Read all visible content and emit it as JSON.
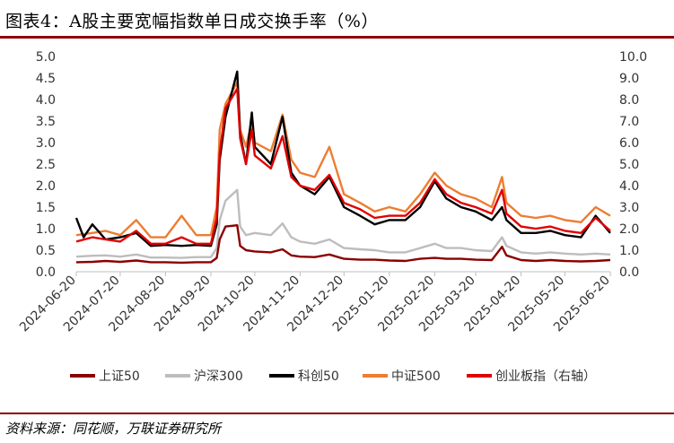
{
  "header": {
    "title": "图表4：A股主要宽幅指数单日成交换手率（%）"
  },
  "footer": {
    "source": "资料来源：同花顺，万联证券研究所"
  },
  "colors": {
    "上证50": "#8b0000",
    "沪深300": "#bdbdbd",
    "科创50": "#000000",
    "中证500": "#ed7d31",
    "创业板指（右轴）": "#e00000",
    "rule": "#8b0000"
  },
  "chart_data": {
    "type": "line",
    "x_ticks": [
      "2024-06-20",
      "2024-07-20",
      "2024-08-20",
      "2024-09-20",
      "2024-10-20",
      "2024-11-20",
      "2024-12-20",
      "2025-01-20",
      "2025-02-20",
      "2025-03-20",
      "2025-04-20",
      "2025-05-20",
      "2025-06-20"
    ],
    "x_range": [
      "2024-06-20",
      "2025-06-20"
    ],
    "y_left": {
      "min": 0,
      "max": 5,
      "ticks": [
        "0.0",
        "0.5",
        "1.0",
        "1.5",
        "2.0",
        "2.5",
        "3.0",
        "3.5",
        "4.0",
        "4.5",
        "5.0"
      ]
    },
    "y_right": {
      "min": 0,
      "max": 10,
      "ticks": [
        "0.0",
        "1.0",
        "2.0",
        "3.0",
        "4.0",
        "5.0",
        "6.0",
        "7.0",
        "8.0",
        "9.0",
        "10.0"
      ]
    },
    "grid": false,
    "legend_position": "bottom",
    "series": [
      {
        "name": "上证50",
        "axis": "left",
        "points": [
          [
            "2024-06-20",
            0.22
          ],
          [
            "2024-07-01",
            0.23
          ],
          [
            "2024-07-10",
            0.25
          ],
          [
            "2024-07-20",
            0.23
          ],
          [
            "2024-07-31",
            0.26
          ],
          [
            "2024-08-10",
            0.22
          ],
          [
            "2024-08-20",
            0.22
          ],
          [
            "2024-08-31",
            0.21
          ],
          [
            "2024-09-10",
            0.22
          ],
          [
            "2024-09-20",
            0.22
          ],
          [
            "2024-09-24",
            0.32
          ],
          [
            "2024-09-26",
            0.75
          ],
          [
            "2024-09-30",
            1.05
          ],
          [
            "2024-10-08",
            1.08
          ],
          [
            "2024-10-10",
            0.6
          ],
          [
            "2024-10-14",
            0.5
          ],
          [
            "2024-10-20",
            0.47
          ],
          [
            "2024-10-31",
            0.45
          ],
          [
            "2024-11-08",
            0.52
          ],
          [
            "2024-11-14",
            0.38
          ],
          [
            "2024-11-20",
            0.35
          ],
          [
            "2024-11-30",
            0.34
          ],
          [
            "2024-12-10",
            0.4
          ],
          [
            "2024-12-20",
            0.3
          ],
          [
            "2024-12-31",
            0.28
          ],
          [
            "2025-01-10",
            0.28
          ],
          [
            "2025-01-20",
            0.26
          ],
          [
            "2025-01-31",
            0.25
          ],
          [
            "2025-02-10",
            0.3
          ],
          [
            "2025-02-20",
            0.32
          ],
          [
            "2025-02-28",
            0.3
          ],
          [
            "2025-03-10",
            0.3
          ],
          [
            "2025-03-20",
            0.28
          ],
          [
            "2025-03-31",
            0.27
          ],
          [
            "2025-04-07",
            0.58
          ],
          [
            "2025-04-10",
            0.38
          ],
          [
            "2025-04-20",
            0.27
          ],
          [
            "2025-04-30",
            0.25
          ],
          [
            "2025-05-10",
            0.27
          ],
          [
            "2025-05-20",
            0.25
          ],
          [
            "2025-05-31",
            0.24
          ],
          [
            "2025-06-10",
            0.25
          ],
          [
            "2025-06-20",
            0.27
          ]
        ]
      },
      {
        "name": "沪深300",
        "axis": "left",
        "points": [
          [
            "2024-06-20",
            0.35
          ],
          [
            "2024-07-01",
            0.37
          ],
          [
            "2024-07-10",
            0.38
          ],
          [
            "2024-07-20",
            0.35
          ],
          [
            "2024-07-31",
            0.4
          ],
          [
            "2024-08-10",
            0.33
          ],
          [
            "2024-08-20",
            0.33
          ],
          [
            "2024-08-31",
            0.32
          ],
          [
            "2024-09-10",
            0.34
          ],
          [
            "2024-09-20",
            0.34
          ],
          [
            "2024-09-24",
            0.55
          ],
          [
            "2024-09-26",
            1.2
          ],
          [
            "2024-09-30",
            1.65
          ],
          [
            "2024-10-08",
            1.9
          ],
          [
            "2024-10-10",
            1.05
          ],
          [
            "2024-10-14",
            0.85
          ],
          [
            "2024-10-20",
            0.9
          ],
          [
            "2024-10-31",
            0.85
          ],
          [
            "2024-11-08",
            1.12
          ],
          [
            "2024-11-14",
            0.8
          ],
          [
            "2024-11-20",
            0.7
          ],
          [
            "2024-11-30",
            0.65
          ],
          [
            "2024-12-10",
            0.75
          ],
          [
            "2024-12-20",
            0.55
          ],
          [
            "2024-12-31",
            0.52
          ],
          [
            "2025-01-10",
            0.5
          ],
          [
            "2025-01-20",
            0.45
          ],
          [
            "2025-01-31",
            0.45
          ],
          [
            "2025-02-10",
            0.55
          ],
          [
            "2025-02-20",
            0.65
          ],
          [
            "2025-02-28",
            0.55
          ],
          [
            "2025-03-10",
            0.55
          ],
          [
            "2025-03-20",
            0.5
          ],
          [
            "2025-03-31",
            0.48
          ],
          [
            "2025-04-07",
            0.8
          ],
          [
            "2025-04-10",
            0.6
          ],
          [
            "2025-04-20",
            0.45
          ],
          [
            "2025-04-30",
            0.42
          ],
          [
            "2025-05-10",
            0.45
          ],
          [
            "2025-05-20",
            0.42
          ],
          [
            "2025-05-31",
            0.4
          ],
          [
            "2025-06-10",
            0.42
          ],
          [
            "2025-06-20",
            0.4
          ]
        ]
      },
      {
        "name": "科创50",
        "axis": "left",
        "points": [
          [
            "2024-06-20",
            1.25
          ],
          [
            "2024-06-25",
            0.8
          ],
          [
            "2024-07-01",
            1.1
          ],
          [
            "2024-07-10",
            0.75
          ],
          [
            "2024-07-20",
            0.8
          ],
          [
            "2024-07-31",
            0.9
          ],
          [
            "2024-08-10",
            0.6
          ],
          [
            "2024-08-20",
            0.62
          ],
          [
            "2024-08-31",
            0.6
          ],
          [
            "2024-09-10",
            0.62
          ],
          [
            "2024-09-20",
            0.6
          ],
          [
            "2024-09-24",
            1.1
          ],
          [
            "2024-09-26",
            2.6
          ],
          [
            "2024-09-30",
            3.6
          ],
          [
            "2024-10-08",
            4.65
          ],
          [
            "2024-10-10",
            3.2
          ],
          [
            "2024-10-14",
            2.5
          ],
          [
            "2024-10-18",
            3.7
          ],
          [
            "2024-10-20",
            2.9
          ],
          [
            "2024-10-31",
            2.5
          ],
          [
            "2024-11-08",
            3.6
          ],
          [
            "2024-11-14",
            2.3
          ],
          [
            "2024-11-20",
            2.0
          ],
          [
            "2024-11-30",
            1.8
          ],
          [
            "2024-12-10",
            2.2
          ],
          [
            "2024-12-20",
            1.5
          ],
          [
            "2024-12-31",
            1.3
          ],
          [
            "2025-01-10",
            1.1
          ],
          [
            "2025-01-20",
            1.2
          ],
          [
            "2025-01-31",
            1.2
          ],
          [
            "2025-02-10",
            1.5
          ],
          [
            "2025-02-20",
            2.1
          ],
          [
            "2025-02-28",
            1.7
          ],
          [
            "2025-03-10",
            1.5
          ],
          [
            "2025-03-20",
            1.4
          ],
          [
            "2025-03-31",
            1.2
          ],
          [
            "2025-04-07",
            1.5
          ],
          [
            "2025-04-10",
            1.2
          ],
          [
            "2025-04-20",
            0.9
          ],
          [
            "2025-04-30",
            0.9
          ],
          [
            "2025-05-10",
            0.95
          ],
          [
            "2025-05-20",
            0.85
          ],
          [
            "2025-05-31",
            0.8
          ],
          [
            "2025-06-10",
            1.3
          ],
          [
            "2025-06-20",
            0.9
          ]
        ]
      },
      {
        "name": "中证500",
        "axis": "left",
        "points": [
          [
            "2024-06-20",
            0.85
          ],
          [
            "2024-07-01",
            0.9
          ],
          [
            "2024-07-10",
            0.95
          ],
          [
            "2024-07-20",
            0.85
          ],
          [
            "2024-07-31",
            1.2
          ],
          [
            "2024-08-10",
            0.8
          ],
          [
            "2024-08-20",
            0.8
          ],
          [
            "2024-08-31",
            1.3
          ],
          [
            "2024-09-10",
            0.85
          ],
          [
            "2024-09-20",
            0.85
          ],
          [
            "2024-09-24",
            1.5
          ],
          [
            "2024-09-26",
            3.3
          ],
          [
            "2024-09-30",
            3.9
          ],
          [
            "2024-10-08",
            4.4
          ],
          [
            "2024-10-10",
            3.3
          ],
          [
            "2024-10-14",
            2.9
          ],
          [
            "2024-10-18",
            3.5
          ],
          [
            "2024-10-20",
            3.0
          ],
          [
            "2024-10-31",
            2.8
          ],
          [
            "2024-11-08",
            3.65
          ],
          [
            "2024-11-14",
            2.6
          ],
          [
            "2024-11-20",
            2.3
          ],
          [
            "2024-11-30",
            2.2
          ],
          [
            "2024-12-10",
            2.9
          ],
          [
            "2024-12-20",
            1.8
          ],
          [
            "2024-12-31",
            1.6
          ],
          [
            "2025-01-10",
            1.4
          ],
          [
            "2025-01-20",
            1.5
          ],
          [
            "2025-01-31",
            1.4
          ],
          [
            "2025-02-10",
            1.8
          ],
          [
            "2025-02-20",
            2.3
          ],
          [
            "2025-02-28",
            2.0
          ],
          [
            "2025-03-10",
            1.8
          ],
          [
            "2025-03-20",
            1.7
          ],
          [
            "2025-03-31",
            1.5
          ],
          [
            "2025-04-07",
            2.2
          ],
          [
            "2025-04-10",
            1.6
          ],
          [
            "2025-04-20",
            1.3
          ],
          [
            "2025-04-30",
            1.25
          ],
          [
            "2025-05-10",
            1.3
          ],
          [
            "2025-05-20",
            1.2
          ],
          [
            "2025-05-31",
            1.15
          ],
          [
            "2025-06-10",
            1.5
          ],
          [
            "2025-06-20",
            1.3
          ]
        ]
      },
      {
        "name": "创业板指（右轴）",
        "axis": "right",
        "points": [
          [
            "2024-06-20",
            1.4
          ],
          [
            "2024-07-01",
            1.6
          ],
          [
            "2024-07-10",
            1.5
          ],
          [
            "2024-07-20",
            1.4
          ],
          [
            "2024-07-31",
            1.9
          ],
          [
            "2024-08-10",
            1.3
          ],
          [
            "2024-08-20",
            1.3
          ],
          [
            "2024-08-31",
            1.6
          ],
          [
            "2024-09-10",
            1.3
          ],
          [
            "2024-09-20",
            1.3
          ],
          [
            "2024-09-24",
            2.5
          ],
          [
            "2024-09-26",
            5.5
          ],
          [
            "2024-09-30",
            7.6
          ],
          [
            "2024-10-08",
            8.5
          ],
          [
            "2024-10-10",
            6.2
          ],
          [
            "2024-10-14",
            5.0
          ],
          [
            "2024-10-18",
            6.6
          ],
          [
            "2024-10-20",
            5.4
          ],
          [
            "2024-10-31",
            4.8
          ],
          [
            "2024-11-08",
            6.3
          ],
          [
            "2024-11-14",
            4.4
          ],
          [
            "2024-11-20",
            4.0
          ],
          [
            "2024-11-30",
            3.8
          ],
          [
            "2024-12-10",
            4.5
          ],
          [
            "2024-12-20",
            3.2
          ],
          [
            "2024-12-31",
            2.9
          ],
          [
            "2025-01-10",
            2.5
          ],
          [
            "2025-01-20",
            2.6
          ],
          [
            "2025-01-31",
            2.6
          ],
          [
            "2025-02-10",
            3.2
          ],
          [
            "2025-02-20",
            4.3
          ],
          [
            "2025-02-28",
            3.6
          ],
          [
            "2025-03-10",
            3.2
          ],
          [
            "2025-03-20",
            3.0
          ],
          [
            "2025-03-31",
            2.7
          ],
          [
            "2025-04-07",
            3.8
          ],
          [
            "2025-04-10",
            2.7
          ],
          [
            "2025-04-20",
            2.1
          ],
          [
            "2025-04-30",
            2.0
          ],
          [
            "2025-05-10",
            2.1
          ],
          [
            "2025-05-20",
            1.9
          ],
          [
            "2025-05-31",
            1.8
          ],
          [
            "2025-06-10",
            2.5
          ],
          [
            "2025-06-20",
            1.9
          ]
        ]
      }
    ]
  }
}
